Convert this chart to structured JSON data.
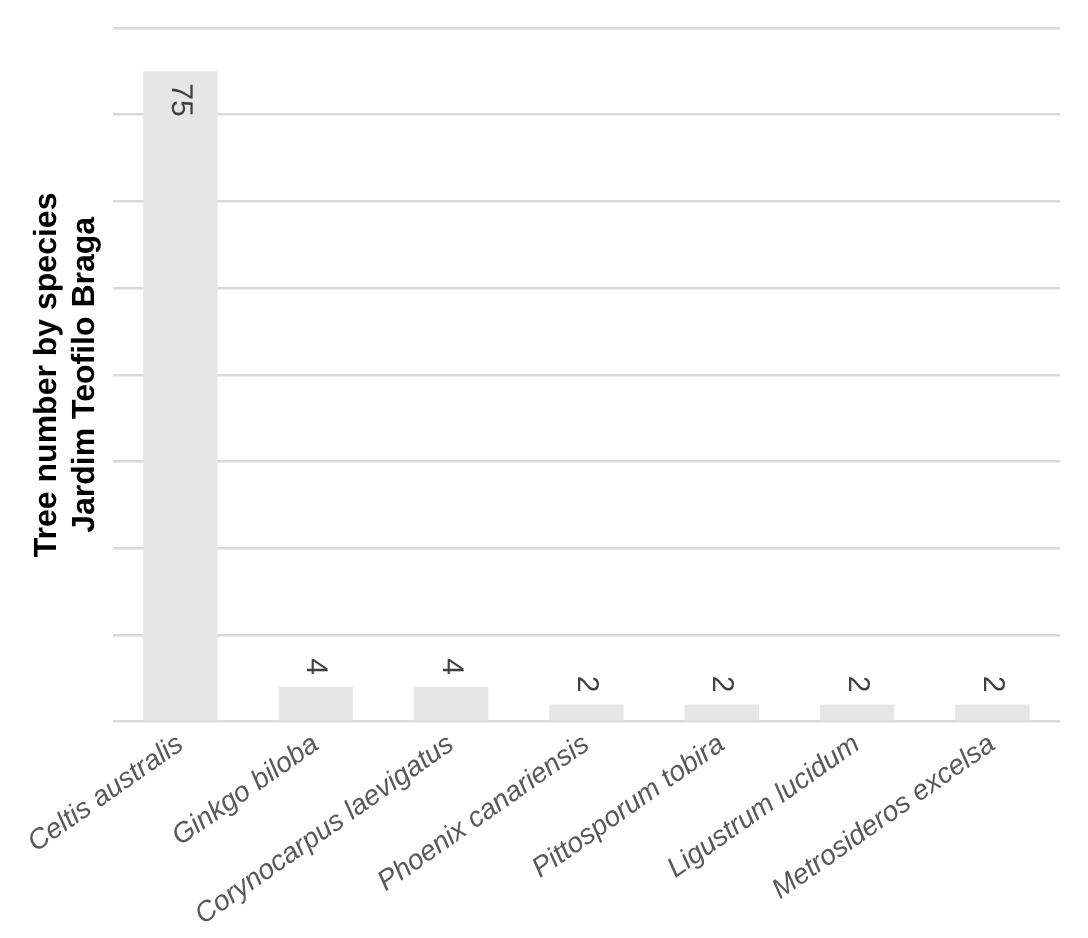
{
  "chart_data": {
    "type": "bar",
    "ylabel": "Tree number by species\nJardim Teofilo Braga",
    "categories": [
      "Celtis australis",
      "Ginkgo biloba",
      "Corynocarpus laevigatus",
      "Phoenix canariensis",
      "Pittosporum tobira",
      "Ligustrum lucidum",
      "Metrosideros excelsa"
    ],
    "values": [
      75,
      4,
      4,
      2,
      2,
      2,
      2
    ],
    "color": "#e6e6e6",
    "ylim": [
      0,
      80
    ],
    "yticks": [
      {
        "value": 0,
        "label": null
      },
      {
        "value": 10,
        "label": null
      },
      {
        "value": 20,
        "label": null
      },
      {
        "value": 30,
        "label": null
      },
      {
        "value": 40,
        "label": null
      },
      {
        "value": 50,
        "label": null
      },
      {
        "value": 60,
        "label": null
      },
      {
        "value": 70,
        "label": null
      },
      {
        "value": 80,
        "label": null
      }
    ],
    "tick_labels": "x",
    "grid": "y",
    "data_labels": true
  }
}
